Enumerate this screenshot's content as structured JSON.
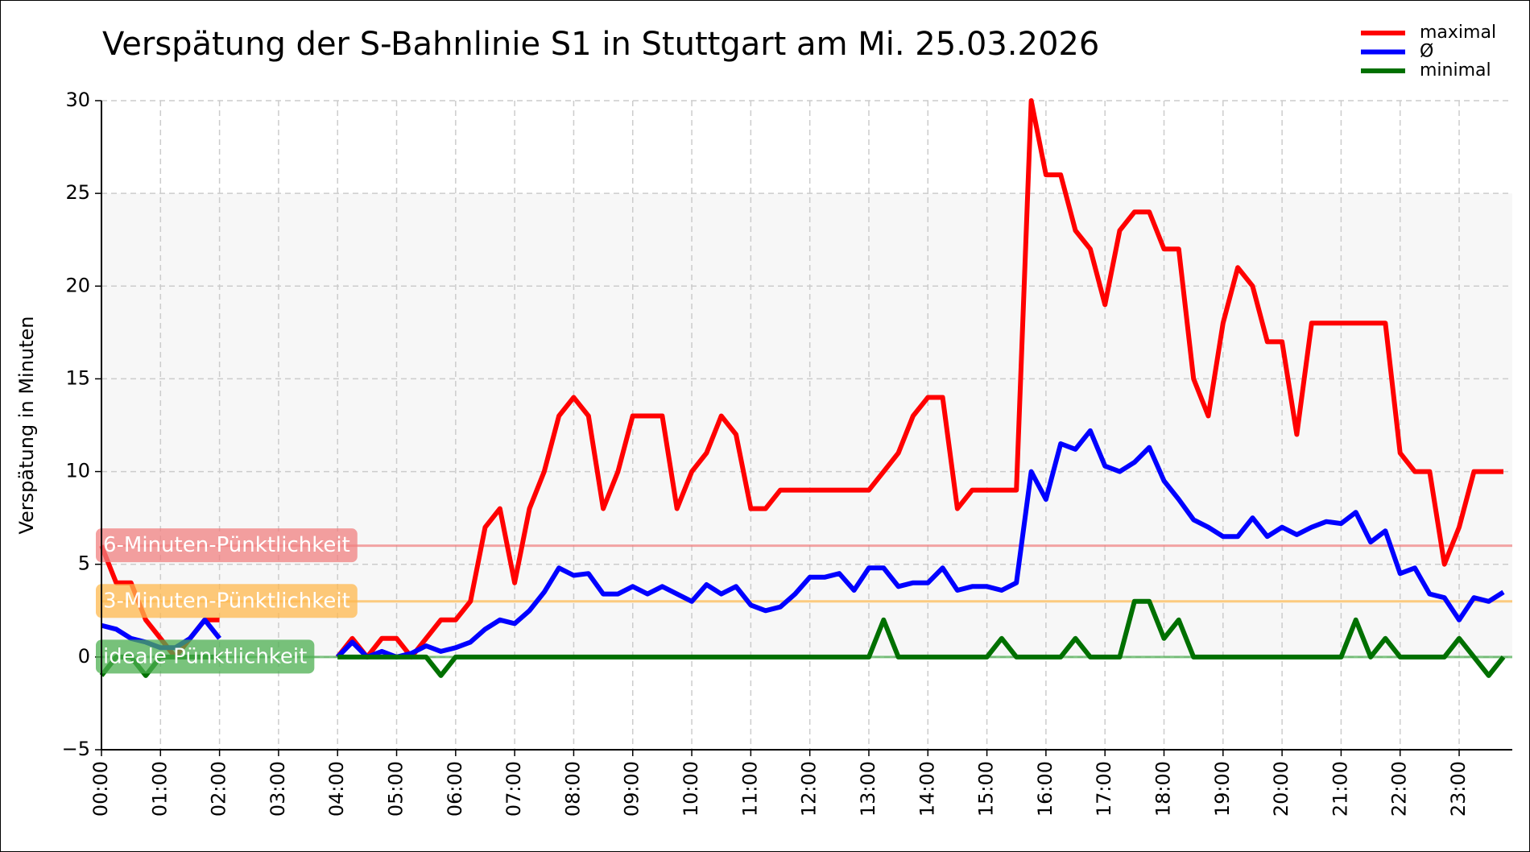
{
  "chart_data": {
    "type": "line",
    "title": "Verspätung der S-Bahnlinie S1 in Stuttgart am Mi. 25.03.2026",
    "y_label": "Verspätung in Minuten",
    "x": [
      0,
      0.25,
      0.5,
      0.75,
      1,
      1.25,
      1.5,
      1.75,
      2,
      2.25,
      2.5,
      2.75,
      3,
      3.25,
      3.5,
      3.75,
      4,
      4.25,
      4.5,
      4.75,
      5,
      5.25,
      5.5,
      5.75,
      6,
      6.25,
      6.5,
      6.75,
      7,
      7.25,
      7.5,
      7.75,
      8,
      8.25,
      8.5,
      8.75,
      9,
      9.25,
      9.5,
      9.75,
      10,
      10.25,
      10.5,
      10.75,
      11,
      11.25,
      11.5,
      11.75,
      12,
      12.25,
      12.5,
      12.75,
      13,
      13.25,
      13.5,
      13.75,
      14,
      14.25,
      14.5,
      14.75,
      15,
      15.25,
      15.5,
      15.75,
      16,
      16.25,
      16.5,
      16.75,
      17,
      17.25,
      17.5,
      17.75,
      18,
      18.25,
      18.5,
      18.75,
      19,
      19.25,
      19.5,
      19.75,
      20,
      20.25,
      20.5,
      20.75,
      21,
      21.25,
      21.5,
      21.75,
      22,
      22.25,
      22.5,
      22.75,
      23,
      23.25,
      23.5,
      23.75
    ],
    "series": [
      {
        "name": "maximal",
        "color": "#ff0000",
        "values": [
          6,
          4,
          4,
          2,
          1,
          0,
          1,
          2,
          2,
          null,
          null,
          null,
          null,
          null,
          null,
          null,
          0,
          1,
          0,
          1,
          1,
          0,
          1,
          2,
          2,
          3,
          7,
          8,
          4,
          8,
          10,
          13,
          14,
          13,
          8,
          10,
          13,
          13,
          13,
          8,
          10,
          11,
          13,
          12,
          8,
          8,
          9,
          9,
          9,
          9,
          9,
          9,
          9,
          10,
          11,
          13,
          14,
          14,
          8,
          9,
          9,
          9,
          9,
          30,
          26,
          26,
          23,
          22,
          19,
          23,
          24,
          24,
          22,
          22,
          15,
          13,
          18,
          21,
          20,
          17,
          17,
          12,
          18,
          18,
          18,
          18,
          18,
          18,
          11,
          10,
          10,
          5,
          7,
          10,
          10,
          10
        ]
      },
      {
        "name": "Ø",
        "color": "#0000ff",
        "values": [
          1.7,
          1.5,
          1,
          0.8,
          0.5,
          0.5,
          1,
          2,
          1,
          null,
          null,
          null,
          null,
          null,
          null,
          null,
          0,
          0.8,
          0,
          0.3,
          0,
          0.2,
          0.6,
          0.3,
          0.5,
          0.8,
          1.5,
          2,
          1.8,
          2.5,
          3.5,
          4.8,
          4.4,
          4.5,
          3.4,
          3.4,
          3.8,
          3.4,
          3.8,
          3.4,
          3.0,
          3.9,
          3.4,
          3.8,
          2.8,
          2.5,
          2.7,
          3.4,
          4.3,
          4.3,
          4.5,
          3.6,
          4.8,
          4.8,
          3.8,
          4.0,
          4.0,
          4.8,
          3.6,
          3.8,
          3.8,
          3.6,
          4,
          10,
          8.5,
          11.5,
          11.2,
          12.2,
          10.3,
          10,
          10.5,
          11.3,
          9.5,
          8.5,
          7.4,
          7.0,
          6.5,
          6.5,
          7.5,
          6.5,
          7.0,
          6.6,
          7.0,
          7.3,
          7.2,
          7.8,
          6.2,
          6.8,
          4.5,
          4.8,
          3.4,
          3.2,
          2.0,
          3.2,
          3.0,
          3.5
        ]
      },
      {
        "name": "minimal",
        "color": "#007000",
        "values": [
          -1,
          0,
          0,
          -1,
          0,
          0,
          0,
          0,
          0,
          null,
          null,
          null,
          null,
          null,
          null,
          null,
          0,
          0,
          0,
          0,
          0,
          0,
          0,
          -1,
          0,
          0,
          0,
          0,
          0,
          0,
          0,
          0,
          0,
          0,
          0,
          0,
          0,
          0,
          0,
          0,
          0,
          0,
          0,
          0,
          0,
          0,
          0,
          0,
          0,
          0,
          0,
          0,
          0,
          2,
          0,
          0,
          0,
          0,
          0,
          0,
          0,
          1,
          0,
          0,
          0,
          0,
          1,
          0,
          0,
          0,
          3,
          3,
          1,
          2,
          0,
          0,
          0,
          0,
          0,
          0,
          0,
          0,
          0,
          0,
          0,
          2,
          0,
          1,
          0,
          0,
          0,
          0,
          1,
          0,
          -1,
          0
        ]
      }
    ],
    "reference_lines": [
      {
        "label": "6-Minuten-Pünktlichkeit",
        "value": 6,
        "color": "#f08080"
      },
      {
        "label": "3-Minuten-Pünktlichkeit",
        "value": 3,
        "color": "#ffb84d"
      },
      {
        "label": "ideale Pünktlichkeit",
        "value": 0,
        "color": "#4caf50"
      }
    ],
    "shaded_range": [
      0,
      25
    ],
    "xlim": [
      0,
      23.9
    ],
    "ylim": [
      -5,
      30
    ],
    "yticks": [
      {
        "value": -5,
        "label": "−5"
      },
      0,
      5,
      10,
      15,
      20,
      25,
      30
    ],
    "xticks": [
      {
        "value": 0,
        "label": "00:00"
      },
      {
        "value": 1,
        "label": "01:00"
      },
      {
        "value": 2,
        "label": "02:00"
      },
      {
        "value": 3,
        "label": "03:00"
      },
      {
        "value": 4,
        "label": "04:00"
      },
      {
        "value": 5,
        "label": "05:00"
      },
      {
        "value": 6,
        "label": "06:00"
      },
      {
        "value": 7,
        "label": "07:00"
      },
      {
        "value": 8,
        "label": "08:00"
      },
      {
        "value": 9,
        "label": "09:00"
      },
      {
        "value": 10,
        "label": "10:00"
      },
      {
        "value": 11,
        "label": "11:00"
      },
      {
        "value": 12,
        "label": "12:00"
      },
      {
        "value": 13,
        "label": "13:00"
      },
      {
        "value": 14,
        "label": "14:00"
      },
      {
        "value": 15,
        "label": "15:00"
      },
      {
        "value": 16,
        "label": "16:00"
      },
      {
        "value": 17,
        "label": "17:00"
      },
      {
        "value": 18,
        "label": "18:00"
      },
      {
        "value": 19,
        "label": "19:00"
      },
      {
        "value": 20,
        "label": "20:00"
      },
      {
        "value": 21,
        "label": "21:00"
      },
      {
        "value": 22,
        "label": "22:00"
      },
      {
        "value": 23,
        "label": "23:00"
      }
    ],
    "grid": true,
    "legend": "upper right"
  }
}
